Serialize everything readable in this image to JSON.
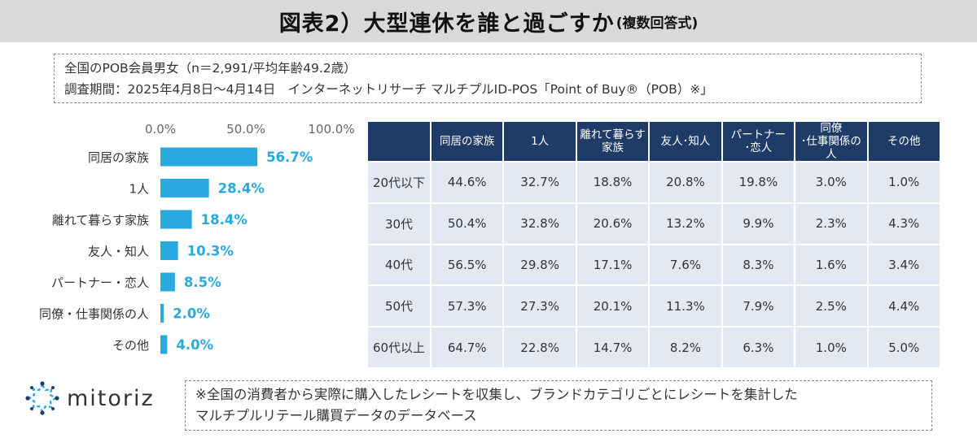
{
  "header": {
    "title": "図表2）大型連休を誰と過ごすか",
    "subtitle": "(複数回答式)"
  },
  "notes": {
    "line1": "全国のPOB会員男女（n＝2,991/平均年齢49.2歳）",
    "line2": "調査期間：2025年4月8日～4月14日　インターネットリサーチ マルチプルID-POS「Point of Buy®（POB）※」"
  },
  "footer": {
    "line1": "※全国の消費者から実際に購入したレシートを収集し、ブランドカテゴリごとにレシートを集計した",
    "line2": "マルチプルリテール購買データのデータベース"
  },
  "logo": {
    "text": "mitoriz",
    "icon": "mitoriz-logo-icon"
  },
  "colors": {
    "bar": "#29a9e0",
    "table_header": "#1f3c68",
    "table_cell": "#e3e8f2",
    "header_bg": "#d9d9d9"
  },
  "chart_data": [
    {
      "type": "bar",
      "orientation": "horizontal",
      "categories": [
        "同居の家族",
        "1人",
        "離れて暮らす家族",
        "友人・知人",
        "パートナー・恋人",
        "同僚・仕事関係の人",
        "その他"
      ],
      "values": [
        56.7,
        28.4,
        18.4,
        10.3,
        8.5,
        2.0,
        4.0
      ],
      "value_labels": [
        "56.7%",
        "28.4%",
        "18.4%",
        "10.3%",
        "8.5%",
        "2.0%",
        "4.0%"
      ],
      "ticks": [
        "0.0%",
        "50.0%",
        "100.0%"
      ],
      "xlim": [
        0,
        100
      ],
      "grid": false
    },
    {
      "type": "table",
      "columns": [
        "",
        "同居の家族",
        "1人",
        "離れて暮らす\n家族",
        "友人･知人",
        "パートナー\n･恋人",
        "同僚\n･仕事関係の人",
        "その他"
      ],
      "rows": [
        [
          "20代以下",
          "44.6%",
          "32.7%",
          "18.8%",
          "20.8%",
          "19.8%",
          "3.0%",
          "1.0%"
        ],
        [
          "30代",
          "50.4%",
          "32.8%",
          "20.6%",
          "13.2%",
          "9.9%",
          "2.3%",
          "4.3%"
        ],
        [
          "40代",
          "56.5%",
          "29.8%",
          "17.1%",
          "7.6%",
          "8.3%",
          "1.6%",
          "3.4%"
        ],
        [
          "50代",
          "57.3%",
          "27.3%",
          "20.1%",
          "11.3%",
          "7.9%",
          "2.5%",
          "4.4%"
        ],
        [
          "60代以上",
          "64.7%",
          "22.8%",
          "14.7%",
          "8.2%",
          "6.3%",
          "1.0%",
          "5.0%"
        ]
      ]
    }
  ]
}
